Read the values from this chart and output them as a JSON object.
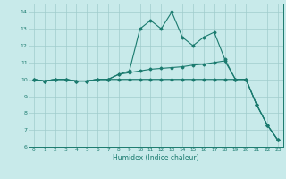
{
  "xlabel": "Humidex (Indice chaleur)",
  "background_color": "#c8eaea",
  "grid_color": "#a0cccc",
  "line_color": "#1a7a6e",
  "xlim": [
    -0.5,
    23.5
  ],
  "ylim": [
    6,
    14.5
  ],
  "yticks": [
    6,
    7,
    8,
    9,
    10,
    11,
    12,
    13,
    14
  ],
  "xticks": [
    0,
    1,
    2,
    3,
    4,
    5,
    6,
    7,
    8,
    9,
    10,
    11,
    12,
    13,
    14,
    15,
    16,
    17,
    18,
    19,
    20,
    21,
    22,
    23
  ],
  "line1_x": [
    0,
    1,
    2,
    3,
    4,
    5,
    6,
    7,
    8,
    9,
    10,
    11,
    12,
    13,
    14,
    15,
    16,
    17,
    18,
    19,
    20,
    21,
    22,
    23
  ],
  "line1_y": [
    10.0,
    9.9,
    10.0,
    10.0,
    9.9,
    9.9,
    10.0,
    10.0,
    10.0,
    10.0,
    10.0,
    10.0,
    10.0,
    10.0,
    10.0,
    10.0,
    10.0,
    10.0,
    10.0,
    10.0,
    10.0,
    8.5,
    7.3,
    6.4
  ],
  "line2_x": [
    0,
    1,
    2,
    3,
    4,
    5,
    6,
    7,
    8,
    9,
    10,
    11,
    12,
    13,
    14,
    15,
    16,
    17,
    18,
    19,
    20,
    21,
    22,
    23
  ],
  "line2_y": [
    10.0,
    9.9,
    10.0,
    10.0,
    9.9,
    9.9,
    10.0,
    10.0,
    10.3,
    10.5,
    13.0,
    13.5,
    13.0,
    14.0,
    12.5,
    12.0,
    12.5,
    12.8,
    11.2,
    10.0,
    10.0,
    8.5,
    7.3,
    6.4
  ],
  "line3_x": [
    0,
    1,
    2,
    3,
    4,
    5,
    6,
    7,
    8,
    9,
    10,
    11,
    12,
    13,
    14,
    15,
    16,
    17,
    18,
    19,
    20,
    21,
    22,
    23
  ],
  "line3_y": [
    10.0,
    9.9,
    10.0,
    10.0,
    9.9,
    9.9,
    10.0,
    10.0,
    10.3,
    10.4,
    10.5,
    10.6,
    10.65,
    10.7,
    10.75,
    10.85,
    10.9,
    11.0,
    11.1,
    10.0,
    10.0,
    8.5,
    7.3,
    6.4
  ]
}
